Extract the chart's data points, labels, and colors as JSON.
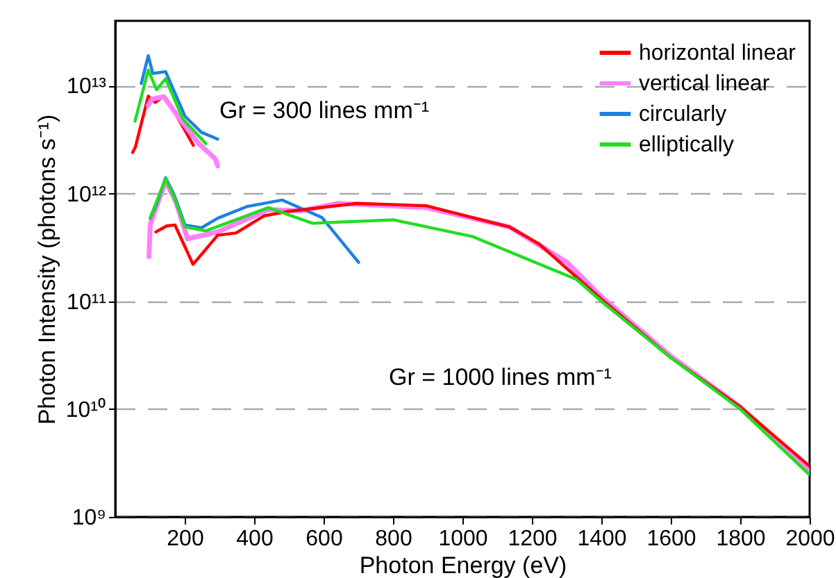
{
  "chart_data": {
    "type": "line",
    "xlabel": "Photon Energy (eV)",
    "ylabel": "Photon Intensity (photons s⁻¹)",
    "log": "y",
    "grid": "y",
    "legend": "top right",
    "xlim": [
      0,
      2000
    ],
    "ylim": [
      1000000000.0,
      40000000000000.0
    ],
    "xticks": [
      200,
      400,
      600,
      800,
      1000,
      1200,
      1400,
      1600,
      1800,
      2000
    ],
    "yticks": [
      {
        "value": 1000000000.0,
        "label": "10⁹"
      },
      {
        "value": 10000000000.0,
        "label": "10¹⁰"
      },
      {
        "value": 100000000000.0,
        "label": "10¹¹"
      },
      {
        "value": 1000000000000.0,
        "label": "10¹²"
      },
      {
        "value": 10000000000000.0,
        "label": "10¹³"
      }
    ],
    "annotations": [
      "Gr = 300 lines mm⁻¹",
      "Gr = 1000 lines mm⁻¹"
    ],
    "series": [
      {
        "name": "horizontal linear",
        "color": "#ff0000",
        "x": [
          50,
          58,
          95,
          115,
          140,
          175,
          225
        ],
        "values": [
          2400000000000.0,
          2700000000000.0,
          8000000000000.0,
          7000000000000.0,
          8000000000000.0,
          5400000000000.0,
          2800000000000.0
        ]
      },
      {
        "name": "vertical linear",
        "color": "#ff80ff",
        "x": [
          95,
          105,
          140,
          195,
          241,
          288,
          295
        ],
        "values": [
          6600000000000.0,
          7500000000000.0,
          7900000000000.0,
          4500000000000.0,
          2900000000000.0,
          2100000000000.0,
          1800000000000.0
        ]
      },
      {
        "name": "circularly",
        "color": "#1f80e0",
        "x": [
          75,
          95,
          108,
          145,
          201,
          248,
          295
        ],
        "values": [
          10500000000000.0,
          19000000000000.0,
          13000000000000.0,
          13500000000000.0,
          5200000000000.0,
          3700000000000.0,
          3200000000000.0
        ]
      },
      {
        "name": "elliptically",
        "color": "#22dd22",
        "x": [
          57,
          95,
          119,
          145,
          195,
          261
        ],
        "values": [
          4700000000000.0,
          14000000000000.0,
          9200000000000.0,
          11600000000000.0,
          4900000000000.0,
          2900000000000.0
        ]
      },
      {
        "color": "#ff80ff",
        "x": [
          97,
          101,
          145,
          175,
          208,
          295,
          441,
          535,
          641,
          895,
          1135,
          1301,
          1400,
          1600,
          1800,
          2000
        ],
        "values": [
          260000000000.0,
          520000000000.0,
          1300000000000.0,
          830000000000.0,
          380000000000.0,
          440000000000.0,
          710000000000.0,
          690000000000.0,
          810000000000.0,
          740000000000.0,
          490000000000.0,
          230000000000.0,
          110000000000.0,
          31000000000.0,
          10500000000.0,
          2700000000.0
        ]
      },
      {
        "color": "#1f80e0",
        "x": [
          101,
          121,
          145,
          168,
          201,
          248,
          295,
          381,
          481,
          595,
          701
        ],
        "values": [
          590000000000.0,
          830000000000.0,
          1400000000000.0,
          1000000000000.0,
          510000000000.0,
          480000000000.0,
          590000000000.0,
          760000000000.0,
          870000000000.0,
          600000000000.0,
          230000000000.0
        ]
      },
      {
        "color": "#ff0000",
        "x": [
          117,
          148,
          172,
          224,
          295,
          348,
          428,
          495,
          695,
          895,
          1135,
          1221,
          1400,
          1600,
          1800,
          2000
        ],
        "values": [
          440000000000.0,
          500000000000.0,
          510000000000.0,
          220000000000.0,
          410000000000.0,
          430000000000.0,
          620000000000.0,
          680000000000.0,
          810000000000.0,
          770000000000.0,
          490000000000.0,
          340000000000.0,
          105000000000.0,
          30000000000.0,
          10500000000.0,
          2950000000.0
        ]
      },
      {
        "color": "#22dd22",
        "x": [
          101,
          145,
          168,
          201,
          261,
          441,
          568,
          801,
          1028,
          1328,
          1400,
          1600,
          1800,
          2000
        ],
        "values": [
          600000000000.0,
          1370000000000.0,
          950000000000.0,
          490000000000.0,
          450000000000.0,
          740000000000.0,
          530000000000.0,
          570000000000.0,
          400000000000.0,
          160000000000.0,
          100000000000.0,
          30000000000.0,
          10000000000.0,
          2450000000.0
        ]
      }
    ]
  }
}
